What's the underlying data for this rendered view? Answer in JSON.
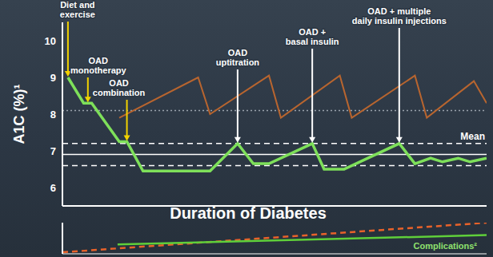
{
  "chart_data": [
    {
      "type": "line",
      "y_label": "A1C (%)¹",
      "x_label": "Duration of Diabetes",
      "xlim": [
        0,
        100
      ],
      "ylim": [
        5.5,
        10.5
      ],
      "yticks": [
        6,
        7,
        8,
        9,
        10
      ],
      "tick_labels": "y",
      "series": [
        {
          "color": "#b8652f",
          "line_style": "solid",
          "x": [
            13.4,
            32.0,
            34.8,
            48.7,
            51.5,
            65.4,
            68.2,
            83.1,
            85.9,
            97.0,
            100
          ],
          "values": [
            7.9,
            9.0,
            8.0,
            9.05,
            7.9,
            9.05,
            7.9,
            9.05,
            7.9,
            8.9,
            8.3
          ]
        },
        {
          "color": "#7ee05a",
          "line_style": "solid",
          "x": [
            1.3,
            5.0,
            6.9,
            13.4,
            15.2,
            19.0,
            34.8,
            41.3,
            45.0,
            48.7,
            58.9,
            61.7,
            66.4,
            79.4,
            83.1,
            86.8,
            89.6,
            93.3,
            96.1,
            100
          ],
          "values": [
            9.0,
            8.3,
            8.3,
            7.25,
            7.25,
            6.45,
            6.45,
            7.2,
            6.65,
            6.65,
            7.2,
            6.5,
            6.5,
            7.2,
            6.65,
            6.8,
            6.7,
            6.8,
            6.7,
            6.8
          ]
        }
      ],
      "reference_lines": [
        {
          "value": 8.1,
          "color": "#9aa3ad",
          "line_style": "dotted"
        },
        {
          "value": 7.2,
          "color": "#ffffff",
          "line_style": "dashed"
        },
        {
          "value": 6.9,
          "color": "#ffffff",
          "line_style": "solid",
          "label": "Mean"
        },
        {
          "value": 6.6,
          "color": "#ffffff",
          "line_style": "dashed"
        }
      ],
      "annotations": [
        {
          "text": "Diet and exercise",
          "x": 1.3,
          "y": 9.0,
          "color": "#f2d200"
        },
        {
          "text": "OAD monotherapy",
          "x": 6.0,
          "y": 8.3,
          "color": "#f2d200"
        },
        {
          "text": "OAD combination",
          "x": 15.2,
          "y": 7.25,
          "color": "#f2d200"
        },
        {
          "text": "OAD uptitration",
          "x": 41.3,
          "y": 7.2,
          "color": "#ffffff"
        },
        {
          "text": "OAD + basal insulin",
          "x": 58.9,
          "y": 7.2,
          "color": "#ffffff"
        },
        {
          "text": "OAD + multiple daily insulin injections",
          "x": 79.4,
          "y": 7.2,
          "color": "#ffffff"
        }
      ]
    },
    {
      "type": "line",
      "label": "Complications²",
      "xlim": [
        0,
        100
      ],
      "ylim": [
        0,
        10
      ],
      "tick_labels": false,
      "series": [
        {
          "color": "#e8622a",
          "line_style": "dashed",
          "x": [
            0,
            100
          ],
          "values": [
            0.5,
            10
          ]
        },
        {
          "color": "#5fcf3a",
          "line_style": "solid",
          "x": [
            13,
            100
          ],
          "values": [
            3,
            6
          ]
        }
      ]
    }
  ]
}
